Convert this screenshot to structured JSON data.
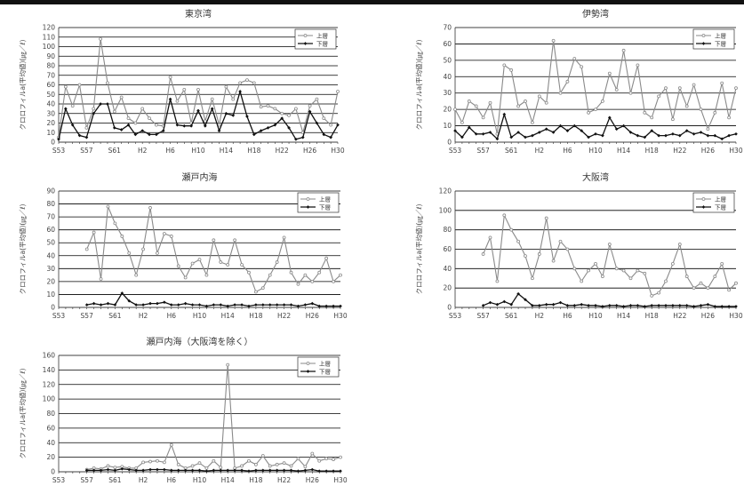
{
  "chart_data": [
    {
      "type": "line",
      "title": "東京湾",
      "ylabel": "クロロフィルa(平均値)(㎍／ℓ)",
      "xlabel": "",
      "ylim": [
        0,
        120
      ],
      "yticks": [
        0,
        10,
        20,
        30,
        40,
        50,
        60,
        70,
        80,
        90,
        100,
        110,
        120
      ],
      "x": [
        "S53",
        "S54",
        "S55",
        "S56",
        "S57",
        "S58",
        "S59",
        "S60",
        "S61",
        "S62",
        "S63",
        "H1",
        "H2",
        "H3",
        "H4",
        "H5",
        "H6",
        "H7",
        "H8",
        "H9",
        "H10",
        "H11",
        "H12",
        "H13",
        "H14",
        "H15",
        "H16",
        "H17",
        "H18",
        "H19",
        "H20",
        "H21",
        "H22",
        "H23",
        "H24",
        "H25",
        "H26",
        "H27",
        "H28",
        "H29",
        "H30"
      ],
      "xtick_labels": [
        "S53",
        "S57",
        "S61",
        "H2",
        "H6",
        "H10",
        "H14",
        "H18",
        "H22",
        "H26",
        "H30"
      ],
      "series": [
        {
          "name": "上層",
          "values": [
            5,
            58,
            38,
            60,
            15,
            35,
            108,
            62,
            32,
            47,
            25,
            20,
            35,
            25,
            18,
            17,
            68,
            43,
            55,
            20,
            55,
            22,
            45,
            18,
            58,
            45,
            62,
            65,
            62,
            37,
            38,
            35,
            30,
            28,
            35,
            10,
            38,
            45,
            25,
            18,
            53
          ]
        },
        {
          "name": "下層",
          "values": [
            3,
            35,
            18,
            7,
            5,
            30,
            40,
            40,
            15,
            13,
            18,
            8,
            12,
            8,
            8,
            12,
            45,
            18,
            17,
            17,
            33,
            17,
            35,
            12,
            30,
            28,
            53,
            27,
            8,
            12,
            15,
            18,
            25,
            15,
            3,
            5,
            32,
            20,
            8,
            5,
            18
          ]
        }
      ]
    },
    {
      "type": "line",
      "title": "伊勢湾",
      "ylabel": "クロロフィルa(平均値)(㎍／ℓ)",
      "xlabel": "",
      "ylim": [
        0,
        70
      ],
      "yticks": [
        0,
        10,
        20,
        30,
        40,
        50,
        60,
        70
      ],
      "x": [
        "S53",
        "S54",
        "S55",
        "S56",
        "S57",
        "S58",
        "S59",
        "S60",
        "S61",
        "S62",
        "S63",
        "H1",
        "H2",
        "H3",
        "H4",
        "H5",
        "H6",
        "H7",
        "H8",
        "H9",
        "H10",
        "H11",
        "H12",
        "H13",
        "H14",
        "H15",
        "H16",
        "H17",
        "H18",
        "H19",
        "H20",
        "H21",
        "H22",
        "H23",
        "H24",
        "H25",
        "H26",
        "H27",
        "H28",
        "H29",
        "H30"
      ],
      "xtick_labels": [
        "S53",
        "S57",
        "S61",
        "H2",
        "H6",
        "H10",
        "H14",
        "H18",
        "H22",
        "H26",
        "H30"
      ],
      "series": [
        {
          "name": "上層",
          "values": [
            20,
            12,
            25,
            22,
            15,
            24,
            5,
            47,
            44,
            22,
            25,
            12,
            28,
            24,
            62,
            30,
            37,
            51,
            46,
            18,
            20,
            25,
            42,
            32,
            56,
            30,
            47,
            18,
            15,
            28,
            33,
            14,
            33,
            22,
            35,
            20,
            8,
            18,
            36,
            15,
            33
          ]
        },
        {
          "name": "下層",
          "values": [
            7,
            3,
            9,
            5,
            5,
            6,
            2,
            17,
            3,
            6,
            3,
            4,
            6,
            8,
            6,
            10,
            7,
            10,
            7,
            3,
            5,
            4,
            15,
            8,
            10,
            6,
            4,
            3,
            7,
            4,
            4,
            5,
            4,
            7,
            5,
            6,
            4,
            4,
            2,
            4,
            5
          ]
        }
      ]
    },
    {
      "type": "line",
      "title": "瀬戸内海",
      "ylabel": "クロロフィルa(平均値)(㎍／ℓ)",
      "xlabel": "",
      "ylim": [
        0,
        90
      ],
      "yticks": [
        0,
        10,
        20,
        30,
        40,
        50,
        60,
        70,
        80,
        90
      ],
      "x": [
        "S53",
        "S54",
        "S55",
        "S56",
        "S57",
        "S58",
        "S59",
        "S60",
        "S61",
        "S62",
        "S63",
        "H1",
        "H2",
        "H3",
        "H4",
        "H5",
        "H6",
        "H7",
        "H8",
        "H9",
        "H10",
        "H11",
        "H12",
        "H13",
        "H14",
        "H15",
        "H16",
        "H17",
        "H18",
        "H19",
        "H20",
        "H21",
        "H22",
        "H23",
        "H24",
        "H25",
        "H26",
        "H27",
        "H28",
        "H29",
        "H30"
      ],
      "xtick_labels": [
        "S53",
        "S57",
        "S61",
        "H2",
        "H6",
        "H10",
        "H14",
        "H18",
        "H22",
        "H26",
        "H30"
      ],
      "series": [
        {
          "name": "上層",
          "values": [
            null,
            null,
            null,
            null,
            45,
            58,
            22,
            78,
            65,
            55,
            42,
            25,
            45,
            77,
            42,
            57,
            55,
            32,
            23,
            34,
            37,
            25,
            52,
            35,
            33,
            52,
            33,
            27,
            12,
            15,
            25,
            35,
            54,
            27,
            18,
            25,
            20,
            27,
            38,
            20,
            25
          ]
        },
        {
          "name": "下層",
          "values": [
            null,
            null,
            null,
            null,
            2,
            3,
            2,
            3,
            2,
            11,
            5,
            2,
            2,
            3,
            3,
            4,
            2,
            2,
            3,
            2,
            2,
            1,
            2,
            2,
            1,
            2,
            2,
            1,
            2,
            2,
            2,
            2,
            2,
            2,
            1,
            2,
            3,
            1,
            1,
            1,
            1
          ]
        }
      ]
    },
    {
      "type": "line",
      "title": "大阪湾",
      "ylabel": "クロロフィルa(平均値)(㎍／ℓ)",
      "xlabel": "",
      "ylim": [
        0,
        120
      ],
      "yticks": [
        0,
        20,
        40,
        60,
        80,
        100,
        120
      ],
      "x": [
        "S53",
        "S54",
        "S55",
        "S56",
        "S57",
        "S58",
        "S59",
        "S60",
        "S61",
        "S62",
        "S63",
        "H1",
        "H2",
        "H3",
        "H4",
        "H5",
        "H6",
        "H7",
        "H8",
        "H9",
        "H10",
        "H11",
        "H12",
        "H13",
        "H14",
        "H15",
        "H16",
        "H17",
        "H18",
        "H19",
        "H20",
        "H21",
        "H22",
        "H23",
        "H24",
        "H25",
        "H26",
        "H27",
        "H28",
        "H29",
        "H30"
      ],
      "xtick_labels": [
        "S53",
        "S57",
        "S61",
        "H2",
        "H6",
        "H10",
        "H14",
        "H18",
        "H22",
        "H26",
        "H30"
      ],
      "series": [
        {
          "name": "上層",
          "values": [
            null,
            null,
            null,
            null,
            55,
            72,
            27,
            95,
            80,
            68,
            53,
            30,
            55,
            92,
            48,
            68,
            60,
            40,
            27,
            38,
            45,
            32,
            65,
            40,
            38,
            30,
            38,
            35,
            12,
            15,
            27,
            45,
            65,
            32,
            20,
            25,
            20,
            32,
            45,
            18,
            25
          ]
        },
        {
          "name": "下層",
          "values": [
            null,
            null,
            null,
            null,
            2,
            5,
            3,
            6,
            3,
            14,
            8,
            2,
            2,
            3,
            3,
            5,
            2,
            2,
            3,
            2,
            2,
            1,
            2,
            2,
            1,
            2,
            2,
            1,
            2,
            2,
            2,
            2,
            2,
            2,
            1,
            2,
            3,
            1,
            1,
            1,
            1
          ]
        }
      ]
    },
    {
      "type": "line",
      "title": "瀬戸内海（大阪湾を除く）",
      "ylabel": "クロロフィルa(平均値)(㎍／ℓ)",
      "xlabel": "",
      "ylim": [
        0,
        160
      ],
      "yticks": [
        0,
        20,
        40,
        60,
        80,
        100,
        120,
        140,
        160
      ],
      "x": [
        "S53",
        "S54",
        "S55",
        "S56",
        "S57",
        "S58",
        "S59",
        "S60",
        "S61",
        "S62",
        "S63",
        "H1",
        "H2",
        "H3",
        "H4",
        "H5",
        "H6",
        "H7",
        "H8",
        "H9",
        "H10",
        "H11",
        "H12",
        "H13",
        "H14",
        "H15",
        "H16",
        "H17",
        "H18",
        "H19",
        "H20",
        "H21",
        "H22",
        "H23",
        "H24",
        "H25",
        "H26",
        "H27",
        "H28",
        "H29",
        "H30"
      ],
      "xtick_labels": [
        "S53",
        "S57",
        "S61",
        "H2",
        "H6",
        "H10",
        "H14",
        "H18",
        "H22",
        "H26",
        "H30"
      ],
      "series": [
        {
          "name": "上層",
          "values": [
            null,
            null,
            null,
            null,
            3,
            5,
            4,
            8,
            6,
            7,
            5,
            5,
            13,
            14,
            15,
            13,
            37,
            10,
            5,
            8,
            12,
            5,
            15,
            6,
            147,
            5,
            8,
            15,
            10,
            22,
            8,
            10,
            12,
            8,
            18,
            7,
            25,
            15,
            18,
            17,
            20
          ]
        },
        {
          "name": "下層",
          "values": [
            null,
            null,
            null,
            null,
            2,
            2,
            2,
            3,
            2,
            4,
            3,
            2,
            2,
            3,
            3,
            3,
            2,
            2,
            2,
            2,
            2,
            1,
            2,
            2,
            2,
            2,
            2,
            1,
            2,
            2,
            2,
            2,
            2,
            2,
            1,
            2,
            3,
            1,
            1,
            1,
            1
          ]
        }
      ]
    }
  ]
}
